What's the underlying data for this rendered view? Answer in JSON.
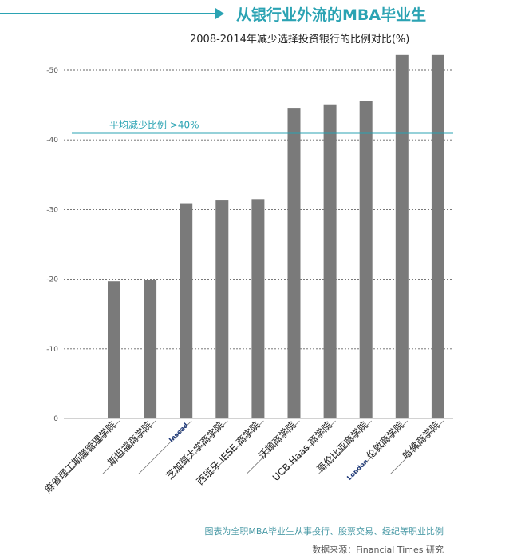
{
  "header": {
    "title": "从银行业外流的MBA毕业生",
    "subtitle": "2008-2014年减少选择投资银行的比例对比(%)"
  },
  "chart_data": {
    "type": "bar",
    "title": "2008-2014年减少选择投资银行的比例对比(%)",
    "xlabel": "",
    "ylabel": "",
    "ylim": [
      0,
      50
    ],
    "yticks": [
      "0",
      "-10",
      "-20",
      "-30",
      "-40",
      "-50"
    ],
    "grid": true,
    "categories": [
      "麻省理工斯隆管理学院",
      "斯坦福商学院",
      "Insead",
      "芝加哥大学商学院",
      "西班牙 IESE 商学院",
      "沃顿商学院",
      "UCB Haas 商学院",
      "哥伦比亚商学院",
      "London 伦敦商学院",
      "哈佛商学院"
    ],
    "category_lines": [
      [
        "麻省理工斯隆管理学院"
      ],
      [
        "斯坦福商学院"
      ],
      [
        "Insead"
      ],
      [
        "芝加哥大学商学院"
      ],
      [
        "西班牙 IESE 商学院"
      ],
      [
        "沃顿商学院"
      ],
      [
        "UCB Haas 商学院"
      ],
      [
        "哥伦比亚商学院"
      ],
      [
        "London",
        " 伦敦商学院"
      ],
      [
        "哈佛商学院"
      ]
    ],
    "values": [
      19.7,
      19.9,
      30.9,
      31.3,
      31.5,
      44.6,
      45.1,
      45.6,
      52.2,
      52.2
    ],
    "reference_line": {
      "value": 41,
      "label": "平均减少比例 >40%"
    }
  },
  "colors": {
    "bar": "#7a7a7a",
    "accent": "#2ba3b3",
    "grid": "#666666"
  },
  "footer": {
    "note": "图表为全职MBA毕业生从事投行、股票交易、经纪等职业比例",
    "source": "数据来源：Financial Times 研究"
  }
}
